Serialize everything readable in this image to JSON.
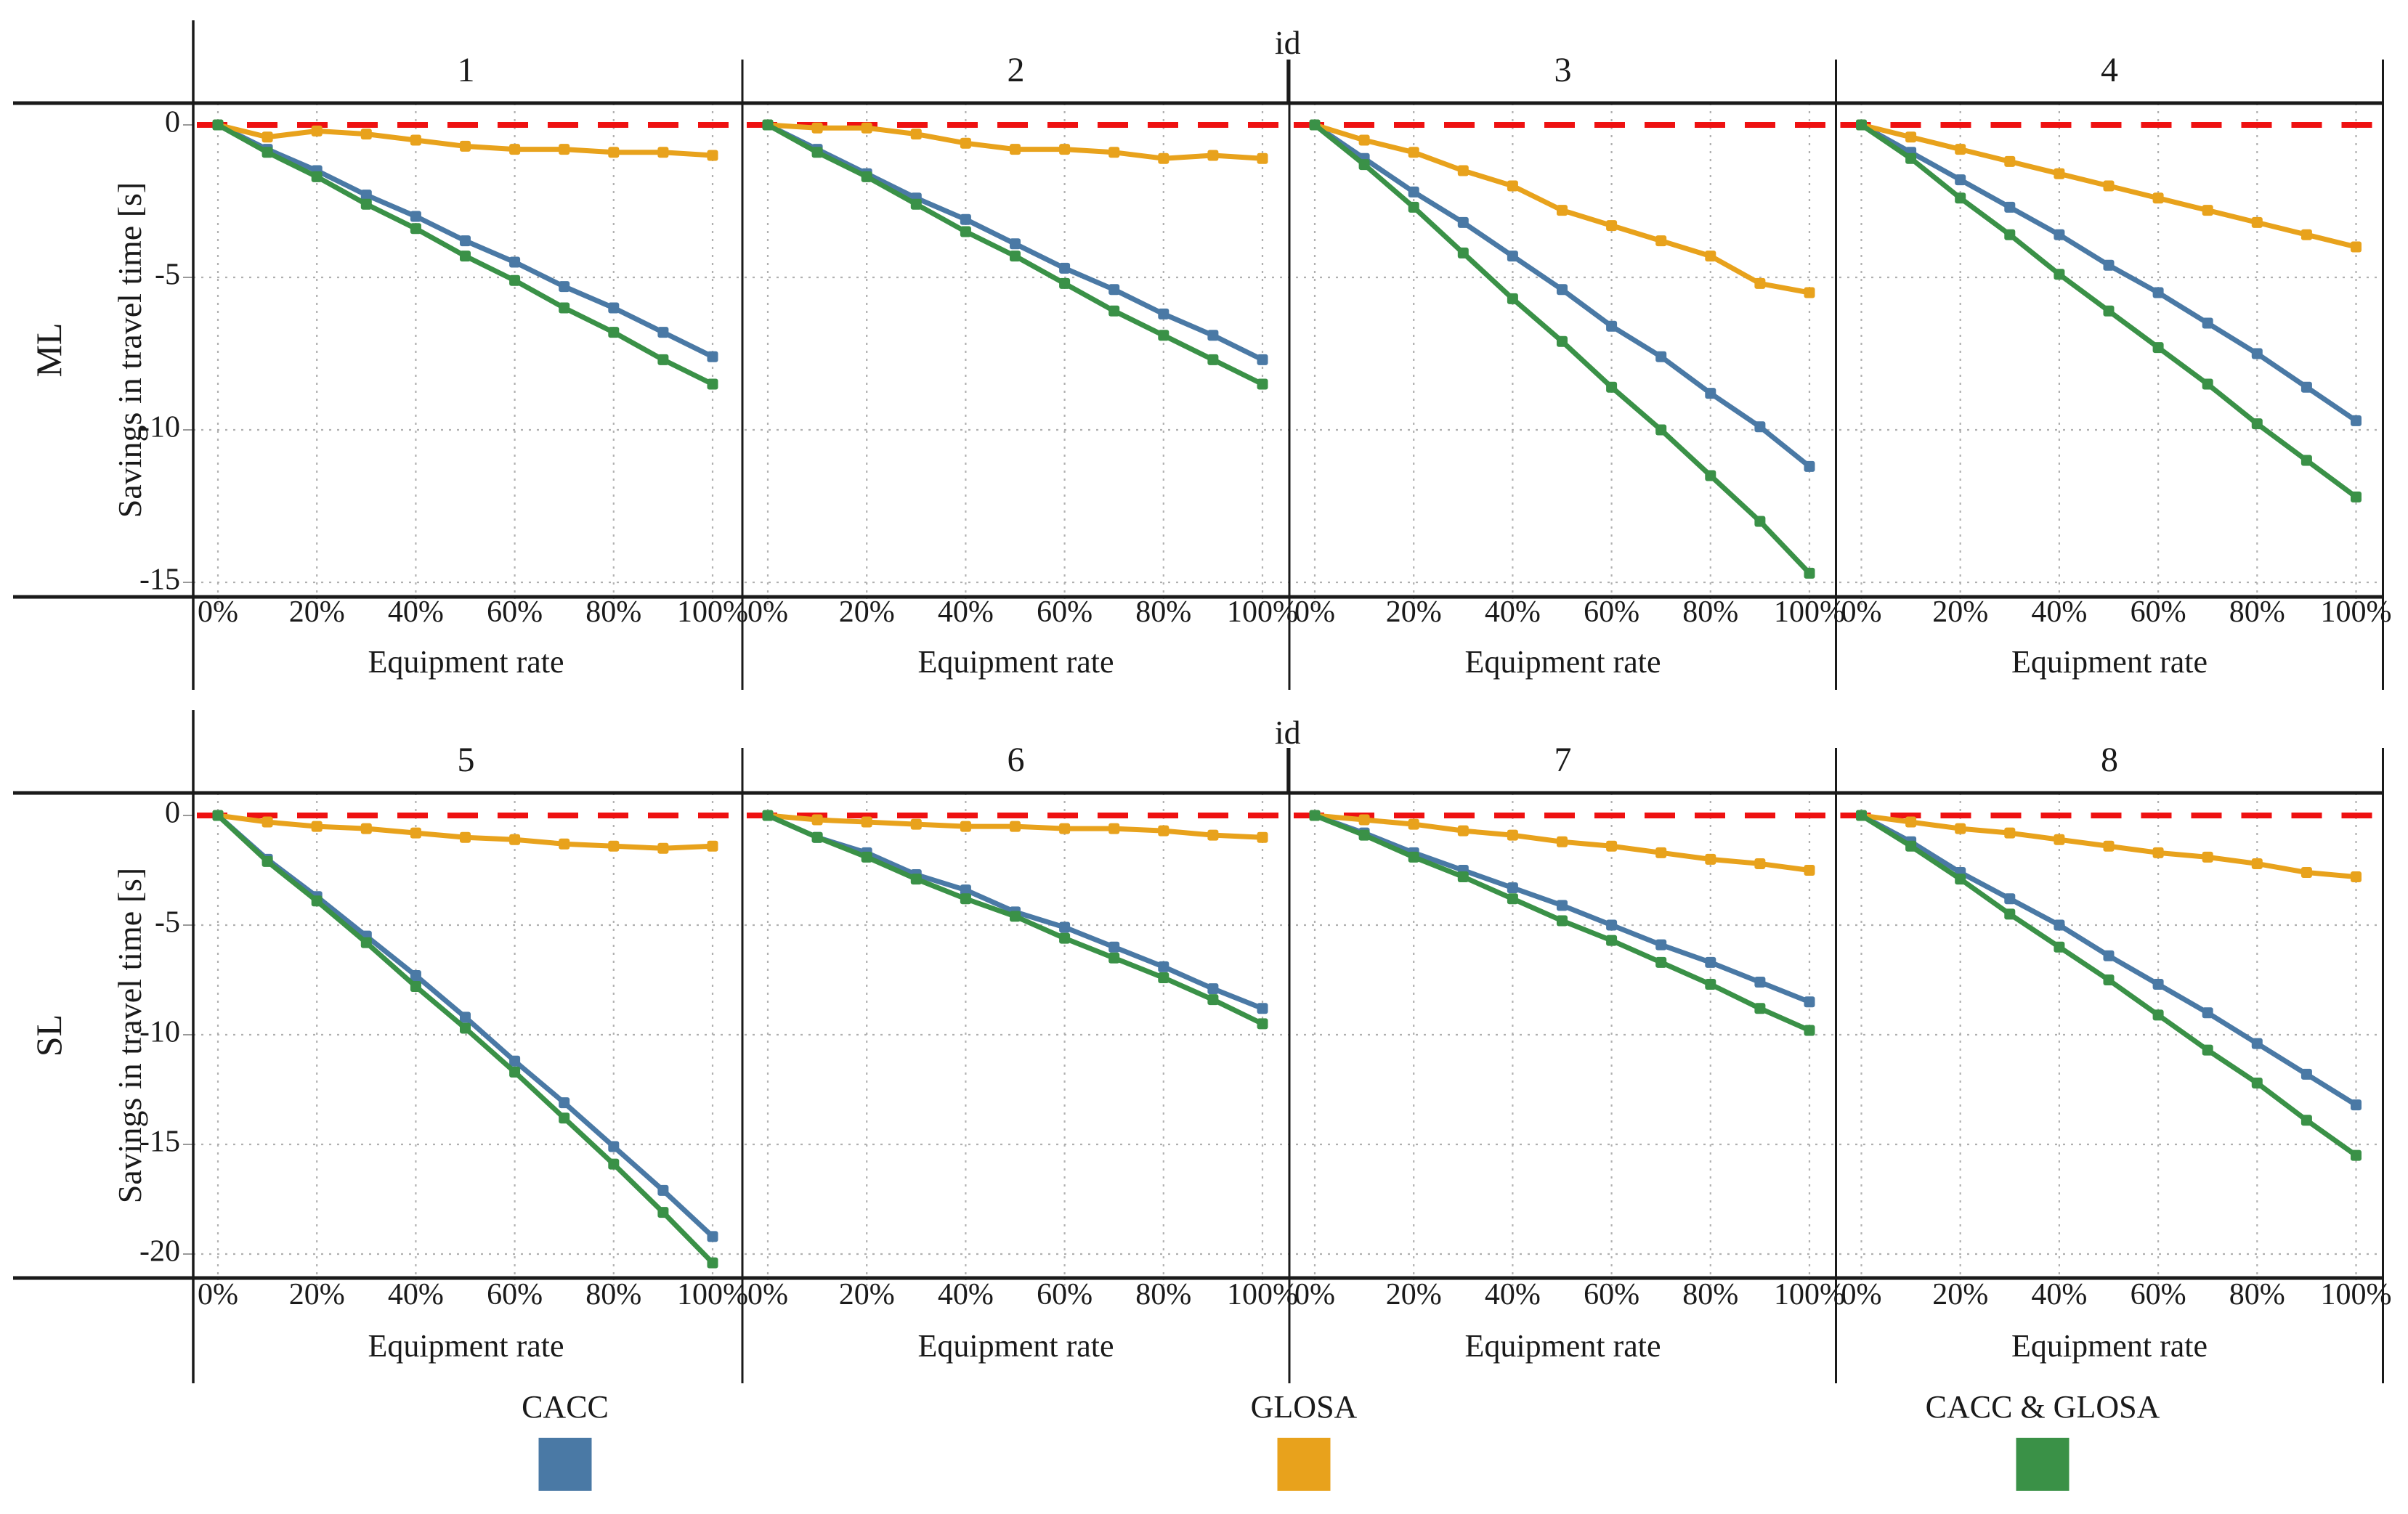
{
  "chart_data": {
    "type": "line",
    "facet_grid": {
      "col_title": "id",
      "row_labels": [
        "ML",
        "SL"
      ]
    },
    "xlabel": "Equipment rate",
    "ylabel": "Savings in travel time [s]",
    "x_percent": [
      0,
      10,
      20,
      30,
      40,
      50,
      60,
      70,
      80,
      90,
      100
    ],
    "x_tick_labels": [
      "0%",
      "20%",
      "40%",
      "60%",
      "80%",
      "100%"
    ],
    "x_tick_percent": [
      0,
      20,
      40,
      60,
      80,
      100
    ],
    "grid": "dotted",
    "zero_reference_line": {
      "value": 0,
      "color": "#ee1111",
      "style": "dashed"
    },
    "legend": [
      {
        "label": "CACC",
        "color": "#4a79a5"
      },
      {
        "label": "GLOSA",
        "color": "#e8a21c"
      },
      {
        "label": "CACC & GLOSA",
        "color": "#3a9147"
      }
    ],
    "rows": [
      {
        "row_label": "ML",
        "yticks": [
          0,
          -5,
          -10,
          -15
        ],
        "ylim": [
          0.7,
          -15.5
        ],
        "facets": [
          {
            "id": "1",
            "series": [
              {
                "name": "CACC",
                "values": [
                  0,
                  -0.8,
                  -1.5,
                  -2.3,
                  -3.0,
                  -3.8,
                  -4.5,
                  -5.3,
                  -6.0,
                  -6.8,
                  -7.6
                ]
              },
              {
                "name": "GLOSA",
                "values": [
                  0,
                  -0.4,
                  -0.2,
                  -0.3,
                  -0.5,
                  -0.7,
                  -0.8,
                  -0.8,
                  -0.9,
                  -0.9,
                  -1.0
                ]
              },
              {
                "name": "CACC & GLOSA",
                "values": [
                  0,
                  -0.9,
                  -1.7,
                  -2.6,
                  -3.4,
                  -4.3,
                  -5.1,
                  -6.0,
                  -6.8,
                  -7.7,
                  -8.5
                ]
              }
            ]
          },
          {
            "id": "2",
            "series": [
              {
                "name": "CACC",
                "values": [
                  0,
                  -0.8,
                  -1.6,
                  -2.4,
                  -3.1,
                  -3.9,
                  -4.7,
                  -5.4,
                  -6.2,
                  -6.9,
                  -7.7
                ]
              },
              {
                "name": "GLOSA",
                "values": [
                  0,
                  -0.1,
                  -0.1,
                  -0.3,
                  -0.6,
                  -0.8,
                  -0.8,
                  -0.9,
                  -1.1,
                  -1.0,
                  -1.1
                ]
              },
              {
                "name": "CACC & GLOSA",
                "values": [
                  0,
                  -0.9,
                  -1.7,
                  -2.6,
                  -3.5,
                  -4.3,
                  -5.2,
                  -6.1,
                  -6.9,
                  -7.7,
                  -8.5
                ]
              }
            ]
          },
          {
            "id": "3",
            "series": [
              {
                "name": "CACC",
                "values": [
                  0,
                  -1.1,
                  -2.2,
                  -3.2,
                  -4.3,
                  -5.4,
                  -6.6,
                  -7.6,
                  -8.8,
                  -9.9,
                  -11.2
                ]
              },
              {
                "name": "GLOSA",
                "values": [
                  0,
                  -0.5,
                  -0.9,
                  -1.5,
                  -2.0,
                  -2.8,
                  -3.3,
                  -3.8,
                  -4.3,
                  -5.2,
                  -5.5
                ]
              },
              {
                "name": "CACC & GLOSA",
                "values": [
                  0,
                  -1.3,
                  -2.7,
                  -4.2,
                  -5.7,
                  -7.1,
                  -8.6,
                  -10.0,
                  -11.5,
                  -13.0,
                  -14.7
                ]
              }
            ]
          },
          {
            "id": "4",
            "series": [
              {
                "name": "CACC",
                "values": [
                  0,
                  -0.9,
                  -1.8,
                  -2.7,
                  -3.6,
                  -4.6,
                  -5.5,
                  -6.5,
                  -7.5,
                  -8.6,
                  -9.7
                ]
              },
              {
                "name": "GLOSA",
                "values": [
                  0,
                  -0.4,
                  -0.8,
                  -1.2,
                  -1.6,
                  -2.0,
                  -2.4,
                  -2.8,
                  -3.2,
                  -3.6,
                  -4.0
                ]
              },
              {
                "name": "CACC & GLOSA",
                "values": [
                  0,
                  -1.1,
                  -2.4,
                  -3.6,
                  -4.9,
                  -6.1,
                  -7.3,
                  -8.5,
                  -9.8,
                  -11.0,
                  -12.2
                ]
              }
            ]
          }
        ]
      },
      {
        "row_label": "SL",
        "yticks": [
          0,
          -5,
          -10,
          -15,
          -20
        ],
        "ylim": [
          1.0,
          -21.1
        ],
        "facets": [
          {
            "id": "5",
            "series": [
              {
                "name": "CACC",
                "values": [
                  0,
                  -2.0,
                  -3.7,
                  -5.5,
                  -7.3,
                  -9.2,
                  -11.2,
                  -13.1,
                  -15.1,
                  -17.1,
                  -19.2
                ]
              },
              {
                "name": "GLOSA",
                "values": [
                  0,
                  -0.3,
                  -0.5,
                  -0.6,
                  -0.8,
                  -1.0,
                  -1.1,
                  -1.3,
                  -1.4,
                  -1.5,
                  -1.4
                ]
              },
              {
                "name": "CACC & GLOSA",
                "values": [
                  0,
                  -2.1,
                  -3.9,
                  -5.8,
                  -7.8,
                  -9.7,
                  -11.7,
                  -13.8,
                  -15.9,
                  -18.1,
                  -20.4
                ]
              }
            ]
          },
          {
            "id": "6",
            "series": [
              {
                "name": "CACC",
                "values": [
                  0,
                  -1.0,
                  -1.7,
                  -2.7,
                  -3.4,
                  -4.4,
                  -5.1,
                  -6.0,
                  -6.9,
                  -7.9,
                  -8.8
                ]
              },
              {
                "name": "GLOSA",
                "values": [
                  0,
                  -0.2,
                  -0.3,
                  -0.4,
                  -0.5,
                  -0.5,
                  -0.6,
                  -0.6,
                  -0.7,
                  -0.9,
                  -1.0
                ]
              },
              {
                "name": "CACC & GLOSA",
                "values": [
                  0,
                  -1.0,
                  -1.9,
                  -2.9,
                  -3.8,
                  -4.6,
                  -5.6,
                  -6.5,
                  -7.4,
                  -8.4,
                  -9.5
                ]
              }
            ]
          },
          {
            "id": "7",
            "series": [
              {
                "name": "CACC",
                "values": [
                  0,
                  -0.8,
                  -1.7,
                  -2.5,
                  -3.3,
                  -4.1,
                  -5.0,
                  -5.9,
                  -6.7,
                  -7.6,
                  -8.5
                ]
              },
              {
                "name": "GLOSA",
                "values": [
                  0,
                  -0.2,
                  -0.4,
                  -0.7,
                  -0.9,
                  -1.2,
                  -1.4,
                  -1.7,
                  -2.0,
                  -2.2,
                  -2.5
                ]
              },
              {
                "name": "CACC & GLOSA",
                "values": [
                  0,
                  -0.9,
                  -1.9,
                  -2.8,
                  -3.8,
                  -4.8,
                  -5.7,
                  -6.7,
                  -7.7,
                  -8.8,
                  -9.8
                ]
              }
            ]
          },
          {
            "id": "8",
            "series": [
              {
                "name": "CACC",
                "values": [
                  0,
                  -1.2,
                  -2.6,
                  -3.8,
                  -5.0,
                  -6.4,
                  -7.7,
                  -9.0,
                  -10.4,
                  -11.8,
                  -13.2
                ]
              },
              {
                "name": "GLOSA",
                "values": [
                  0,
                  -0.3,
                  -0.6,
                  -0.8,
                  -1.1,
                  -1.4,
                  -1.7,
                  -1.9,
                  -2.2,
                  -2.6,
                  -2.8
                ]
              },
              {
                "name": "CACC & GLOSA",
                "values": [
                  0,
                  -1.4,
                  -2.9,
                  -4.5,
                  -6.0,
                  -7.5,
                  -9.1,
                  -10.7,
                  -12.2,
                  -13.9,
                  -15.5
                ]
              }
            ]
          }
        ]
      }
    ],
    "colors": {
      "border": "#1a1a1a",
      "gridline": "#b0b0b0",
      "tick_stub": "#999999",
      "zero_line": "#ee1111"
    }
  }
}
